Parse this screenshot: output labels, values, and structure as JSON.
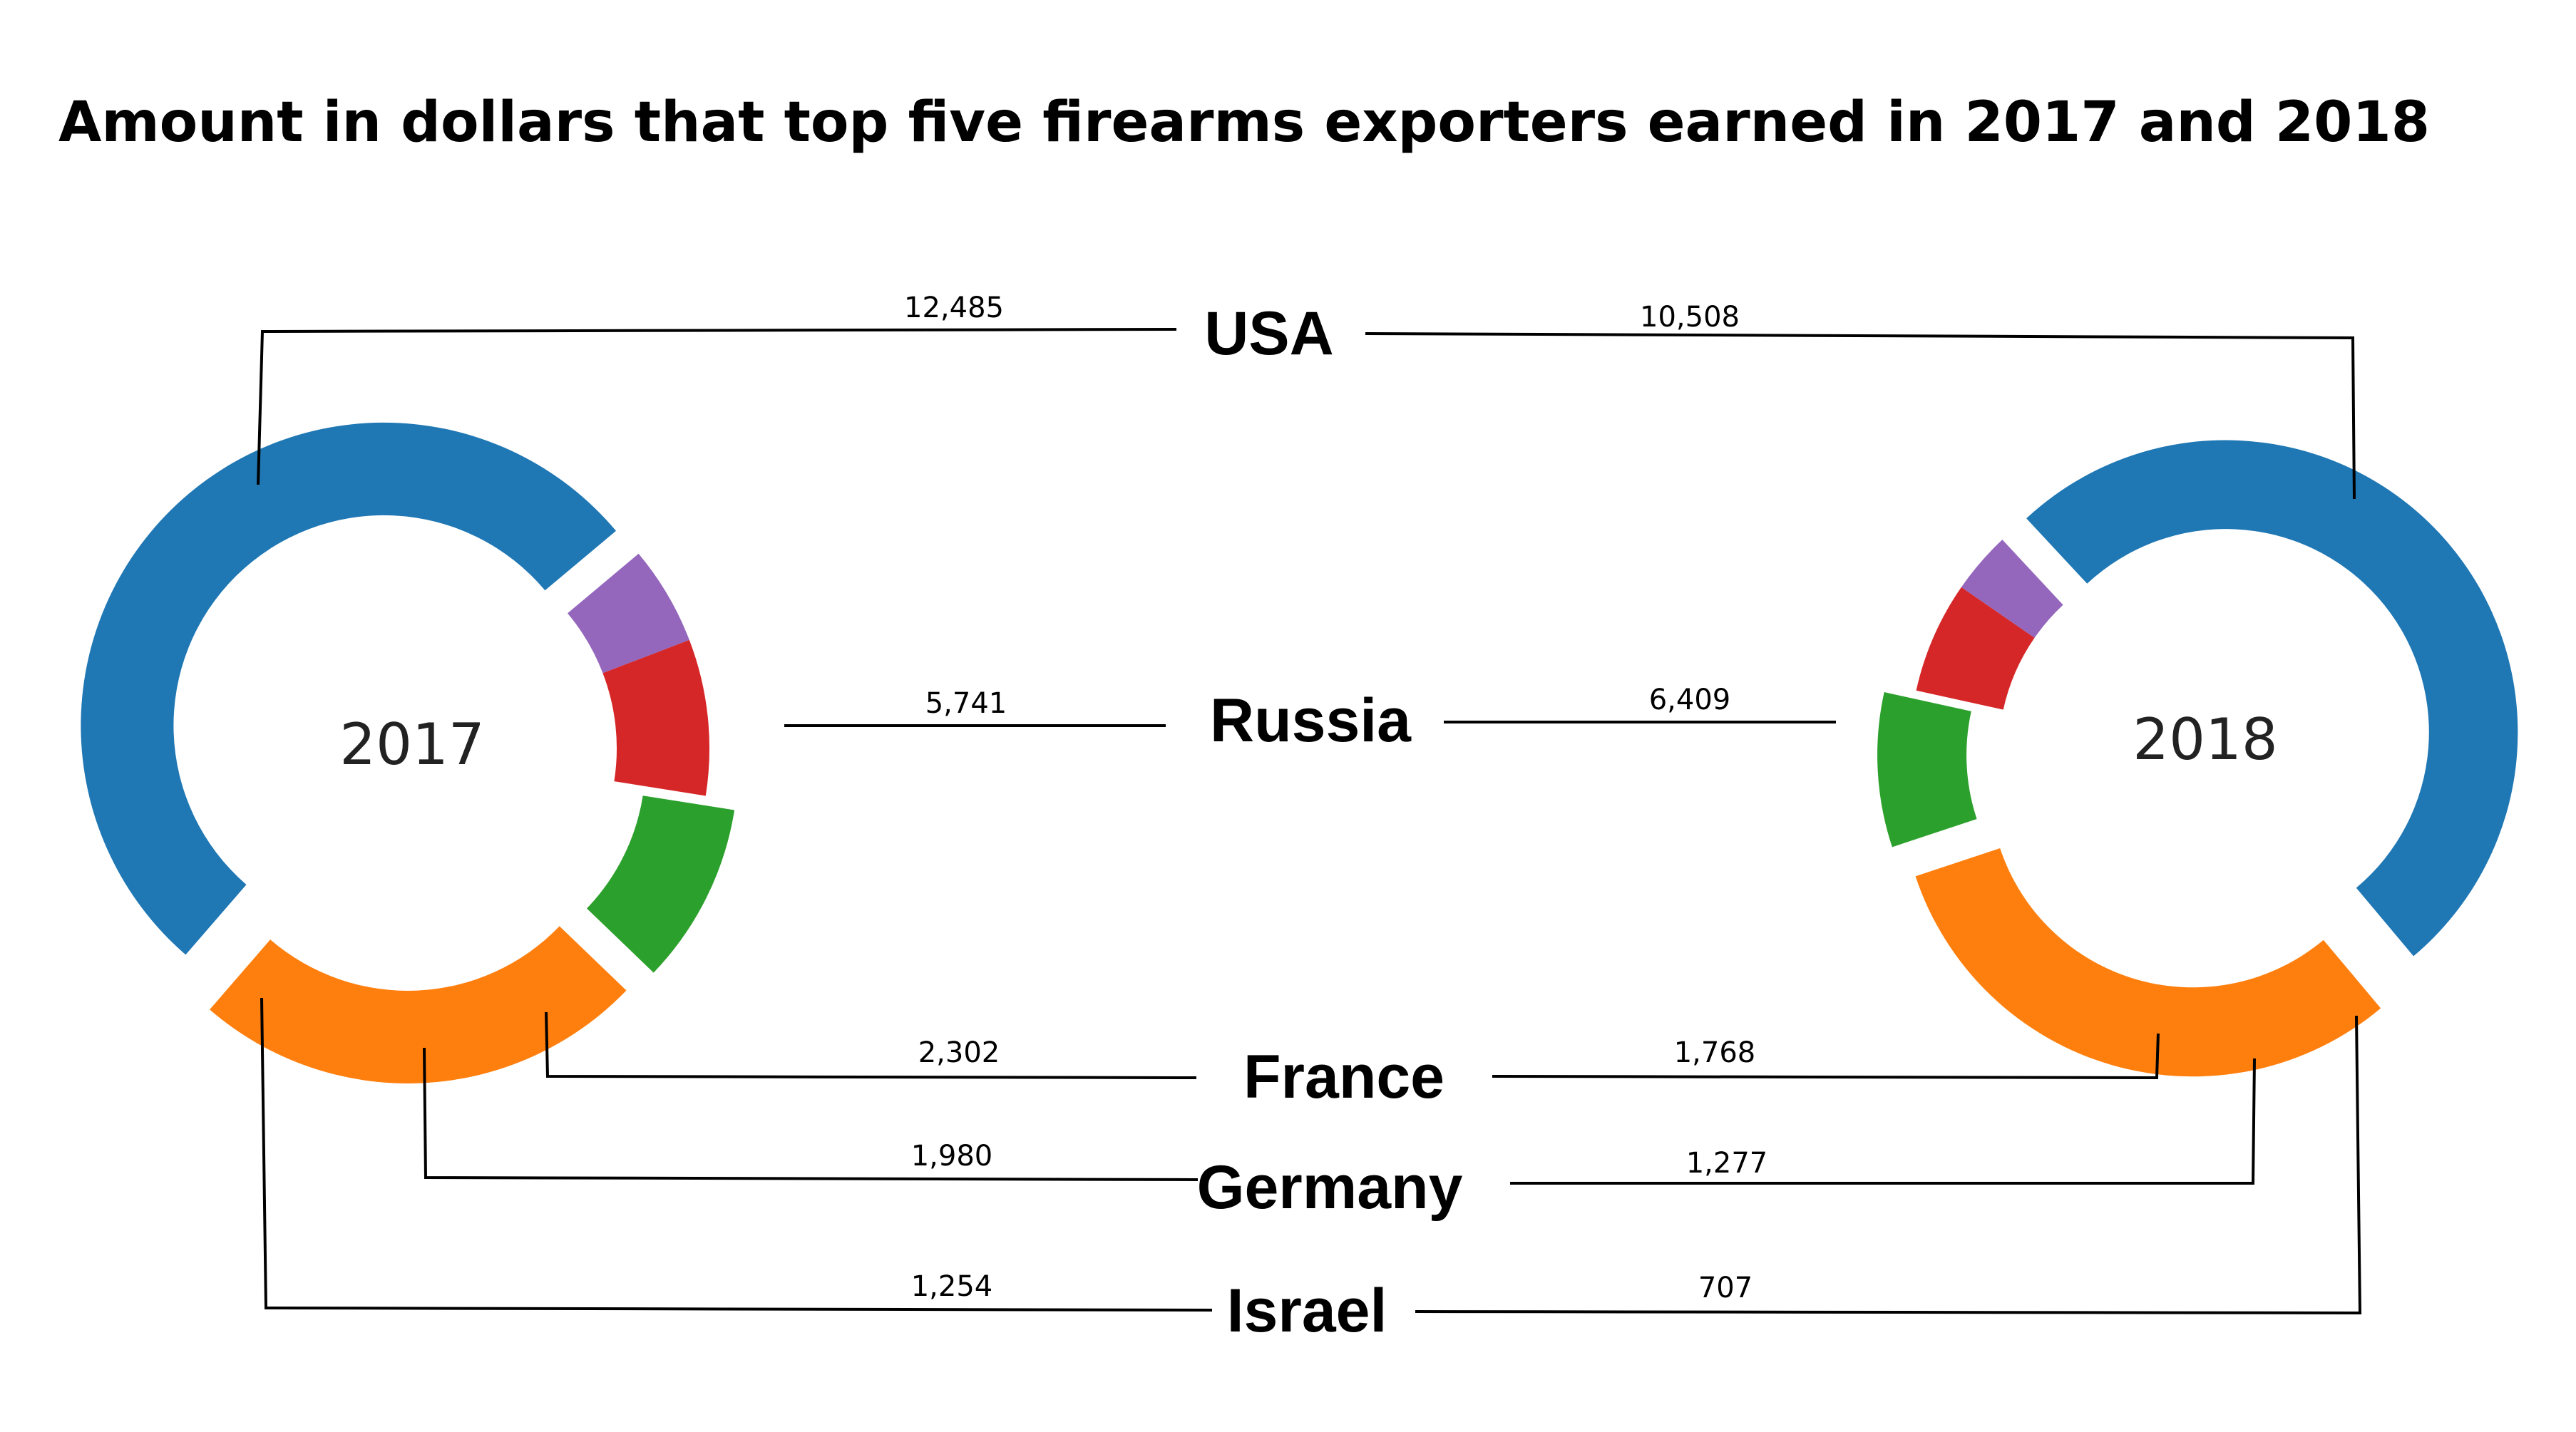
{
  "chart_data": {
    "type": "pie",
    "title": "Amount in dollars that top five firearms exporters earned in 2017 and 2018",
    "series": [
      {
        "name": "2017",
        "values": [
          12485,
          5741,
          2302,
          1980,
          1254
        ]
      },
      {
        "name": "2018",
        "values": [
          10508,
          6409,
          1768,
          1277,
          707
        ]
      }
    ],
    "categories": [
      "USA",
      "Russia",
      "France",
      "Germany",
      "Israel"
    ],
    "value_labels": {
      "2017": [
        "12,485",
        "5,741",
        "2,302",
        "1,980",
        "1,254"
      ],
      "2018": [
        "10,508",
        "6,409",
        "1,768",
        "1,277",
        "707"
      ]
    },
    "colors": [
      "#1f77b4",
      "#ff7f0e",
      "#2ca02c",
      "#d62728",
      "#9467bd"
    ],
    "exploded": [
      "USA",
      "Russia",
      "France"
    ]
  }
}
